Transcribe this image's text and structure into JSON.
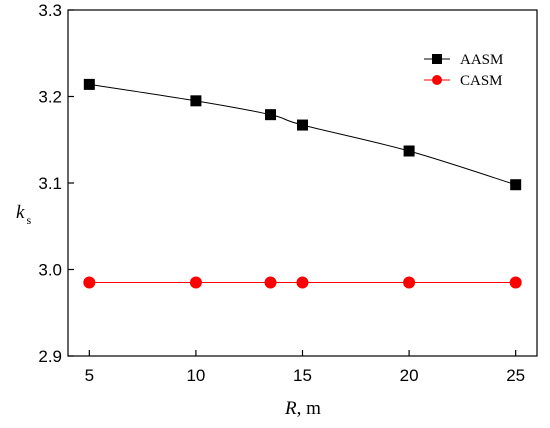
{
  "chart_data": {
    "type": "line",
    "title": "",
    "xlabel": {
      "var": "R",
      "unit": ", m"
    },
    "ylabel": {
      "var": "k",
      "sub": "s"
    },
    "xlim": [
      4,
      26
    ],
    "ylim": [
      2.9,
      3.3
    ],
    "x_ticks": [
      5,
      10,
      15,
      20,
      25
    ],
    "y_ticks": [
      "2.9",
      "3.0",
      "3.1",
      "3.2",
      "3.3"
    ],
    "grid": false,
    "legend_position": "top-right",
    "series": [
      {
        "name": "AASM",
        "color": "#000000",
        "marker": "square",
        "x": [
          5,
          10,
          13.5,
          15,
          20,
          25
        ],
        "y": [
          3.214,
          3.195,
          3.179,
          3.167,
          3.137,
          3.098
        ]
      },
      {
        "name": "CASM",
        "color": "#ff0000",
        "marker": "circle",
        "x": [
          5,
          10,
          13.5,
          15,
          20,
          25
        ],
        "y": [
          2.985,
          2.985,
          2.985,
          2.985,
          2.985,
          2.985
        ]
      }
    ]
  }
}
